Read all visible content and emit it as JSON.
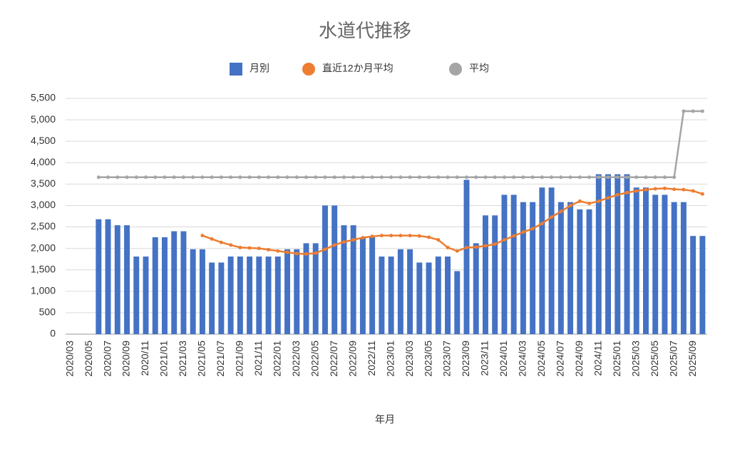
{
  "chart_data": {
    "type": "bar",
    "title": "水道代推移",
    "x_label": "年月",
    "categories": [
      "2020/03",
      null,
      "2020/05",
      null,
      "2020/07",
      null,
      "2020/09",
      null,
      "2020/11",
      null,
      "2021/01",
      null,
      "2021/03",
      null,
      "2021/05",
      null,
      "2021/07",
      null,
      "2021/09",
      null,
      "2021/11",
      null,
      "2022/01",
      null,
      "2022/03",
      null,
      "2022/05",
      null,
      "2022/07",
      null,
      "2022/09",
      null,
      "2022/11",
      null,
      "2023/01",
      null,
      "2023/03",
      null,
      "2023/05",
      null,
      "2023/07",
      null,
      "2023/09",
      null,
      "2023/11",
      null,
      "2024/01",
      null,
      "2024/03",
      null,
      "2024/05",
      null,
      "2024/07",
      null,
      "2024/09",
      null,
      "2024/11",
      null,
      "2025/01",
      null,
      "2025/03",
      null,
      "2025/05",
      null,
      "2025/07",
      null,
      "2025/09",
      null
    ],
    "series": [
      {
        "name": "月別",
        "type": "bar",
        "color": "#4472c4",
        "values": [
          null,
          null,
          null,
          2680,
          2680,
          2540,
          2540,
          1810,
          1810,
          2260,
          2260,
          2400,
          2400,
          1980,
          1980,
          1670,
          1670,
          1810,
          1810,
          1810,
          1810,
          1810,
          1810,
          1980,
          1980,
          2120,
          2120,
          3000,
          3000,
          2540,
          2540,
          2260,
          2260,
          1810,
          1810,
          1980,
          1980,
          1670,
          1670,
          1810,
          1810,
          1470,
          3600,
          2120,
          2770,
          2770,
          3250,
          3250,
          3080,
          3080,
          3420,
          3420,
          3080,
          3080,
          2910,
          2910,
          3730,
          3730,
          3730,
          3730,
          3420,
          3420,
          3250,
          3250,
          3080,
          3080,
          2290,
          2290
        ]
      },
      {
        "name": "直近12か月平均",
        "type": "line",
        "color": "#ed7d31",
        "values": [
          null,
          null,
          null,
          null,
          null,
          null,
          null,
          null,
          null,
          null,
          null,
          null,
          null,
          null,
          2300,
          2220,
          2140,
          2080,
          2020,
          2010,
          2000,
          1970,
          1940,
          1910,
          1880,
          1870,
          1890,
          1980,
          2080,
          2150,
          2200,
          2250,
          2280,
          2300,
          2300,
          2300,
          2300,
          2290,
          2260,
          2200,
          2020,
          1940,
          2020,
          2030,
          2060,
          2100,
          2200,
          2290,
          2380,
          2460,
          2580,
          2730,
          2860,
          3000,
          3100,
          3050,
          3100,
          3180,
          3250,
          3300,
          3340,
          3370,
          3390,
          3400,
          3380,
          3370,
          3340,
          3270
        ]
      },
      {
        "name": "平均",
        "type": "line",
        "color": "#a5a5a5",
        "values": [
          null,
          null,
          null,
          3660,
          3660,
          3660,
          3660,
          3660,
          3660,
          3660,
          3660,
          3660,
          3660,
          3660,
          3660,
          3660,
          3660,
          3660,
          3660,
          3660,
          3660,
          3660,
          3660,
          3660,
          3660,
          3660,
          3660,
          3660,
          3660,
          3660,
          3660,
          3660,
          3660,
          3660,
          3660,
          3660,
          3660,
          3660,
          3660,
          3660,
          3660,
          3660,
          3660,
          3660,
          3660,
          3660,
          3660,
          3660,
          3660,
          3660,
          3660,
          3660,
          3660,
          3660,
          3660,
          3660,
          3660,
          3660,
          3660,
          3660,
          3660,
          3660,
          3660,
          3660,
          3660,
          5200,
          5200,
          5200
        ]
      }
    ],
    "ylim": [
      0,
      5500
    ],
    "yticks": [
      0,
      500,
      {
        "value": 1000,
        "label": "1,000"
      },
      {
        "value": 1500,
        "label": "1,500"
      },
      {
        "value": 2000,
        "label": "2,000"
      },
      {
        "value": 2500,
        "label": "2,500"
      },
      {
        "value": 3000,
        "label": "3,000"
      },
      {
        "value": 3500,
        "label": "3,500"
      },
      {
        "value": 4000,
        "label": "4,000"
      },
      {
        "value": 4500,
        "label": "4,500"
      },
      {
        "value": 5000,
        "label": "5,000"
      },
      {
        "value": 5500,
        "label": "5,500"
      }
    ],
    "grid": true,
    "legend": "top"
  }
}
